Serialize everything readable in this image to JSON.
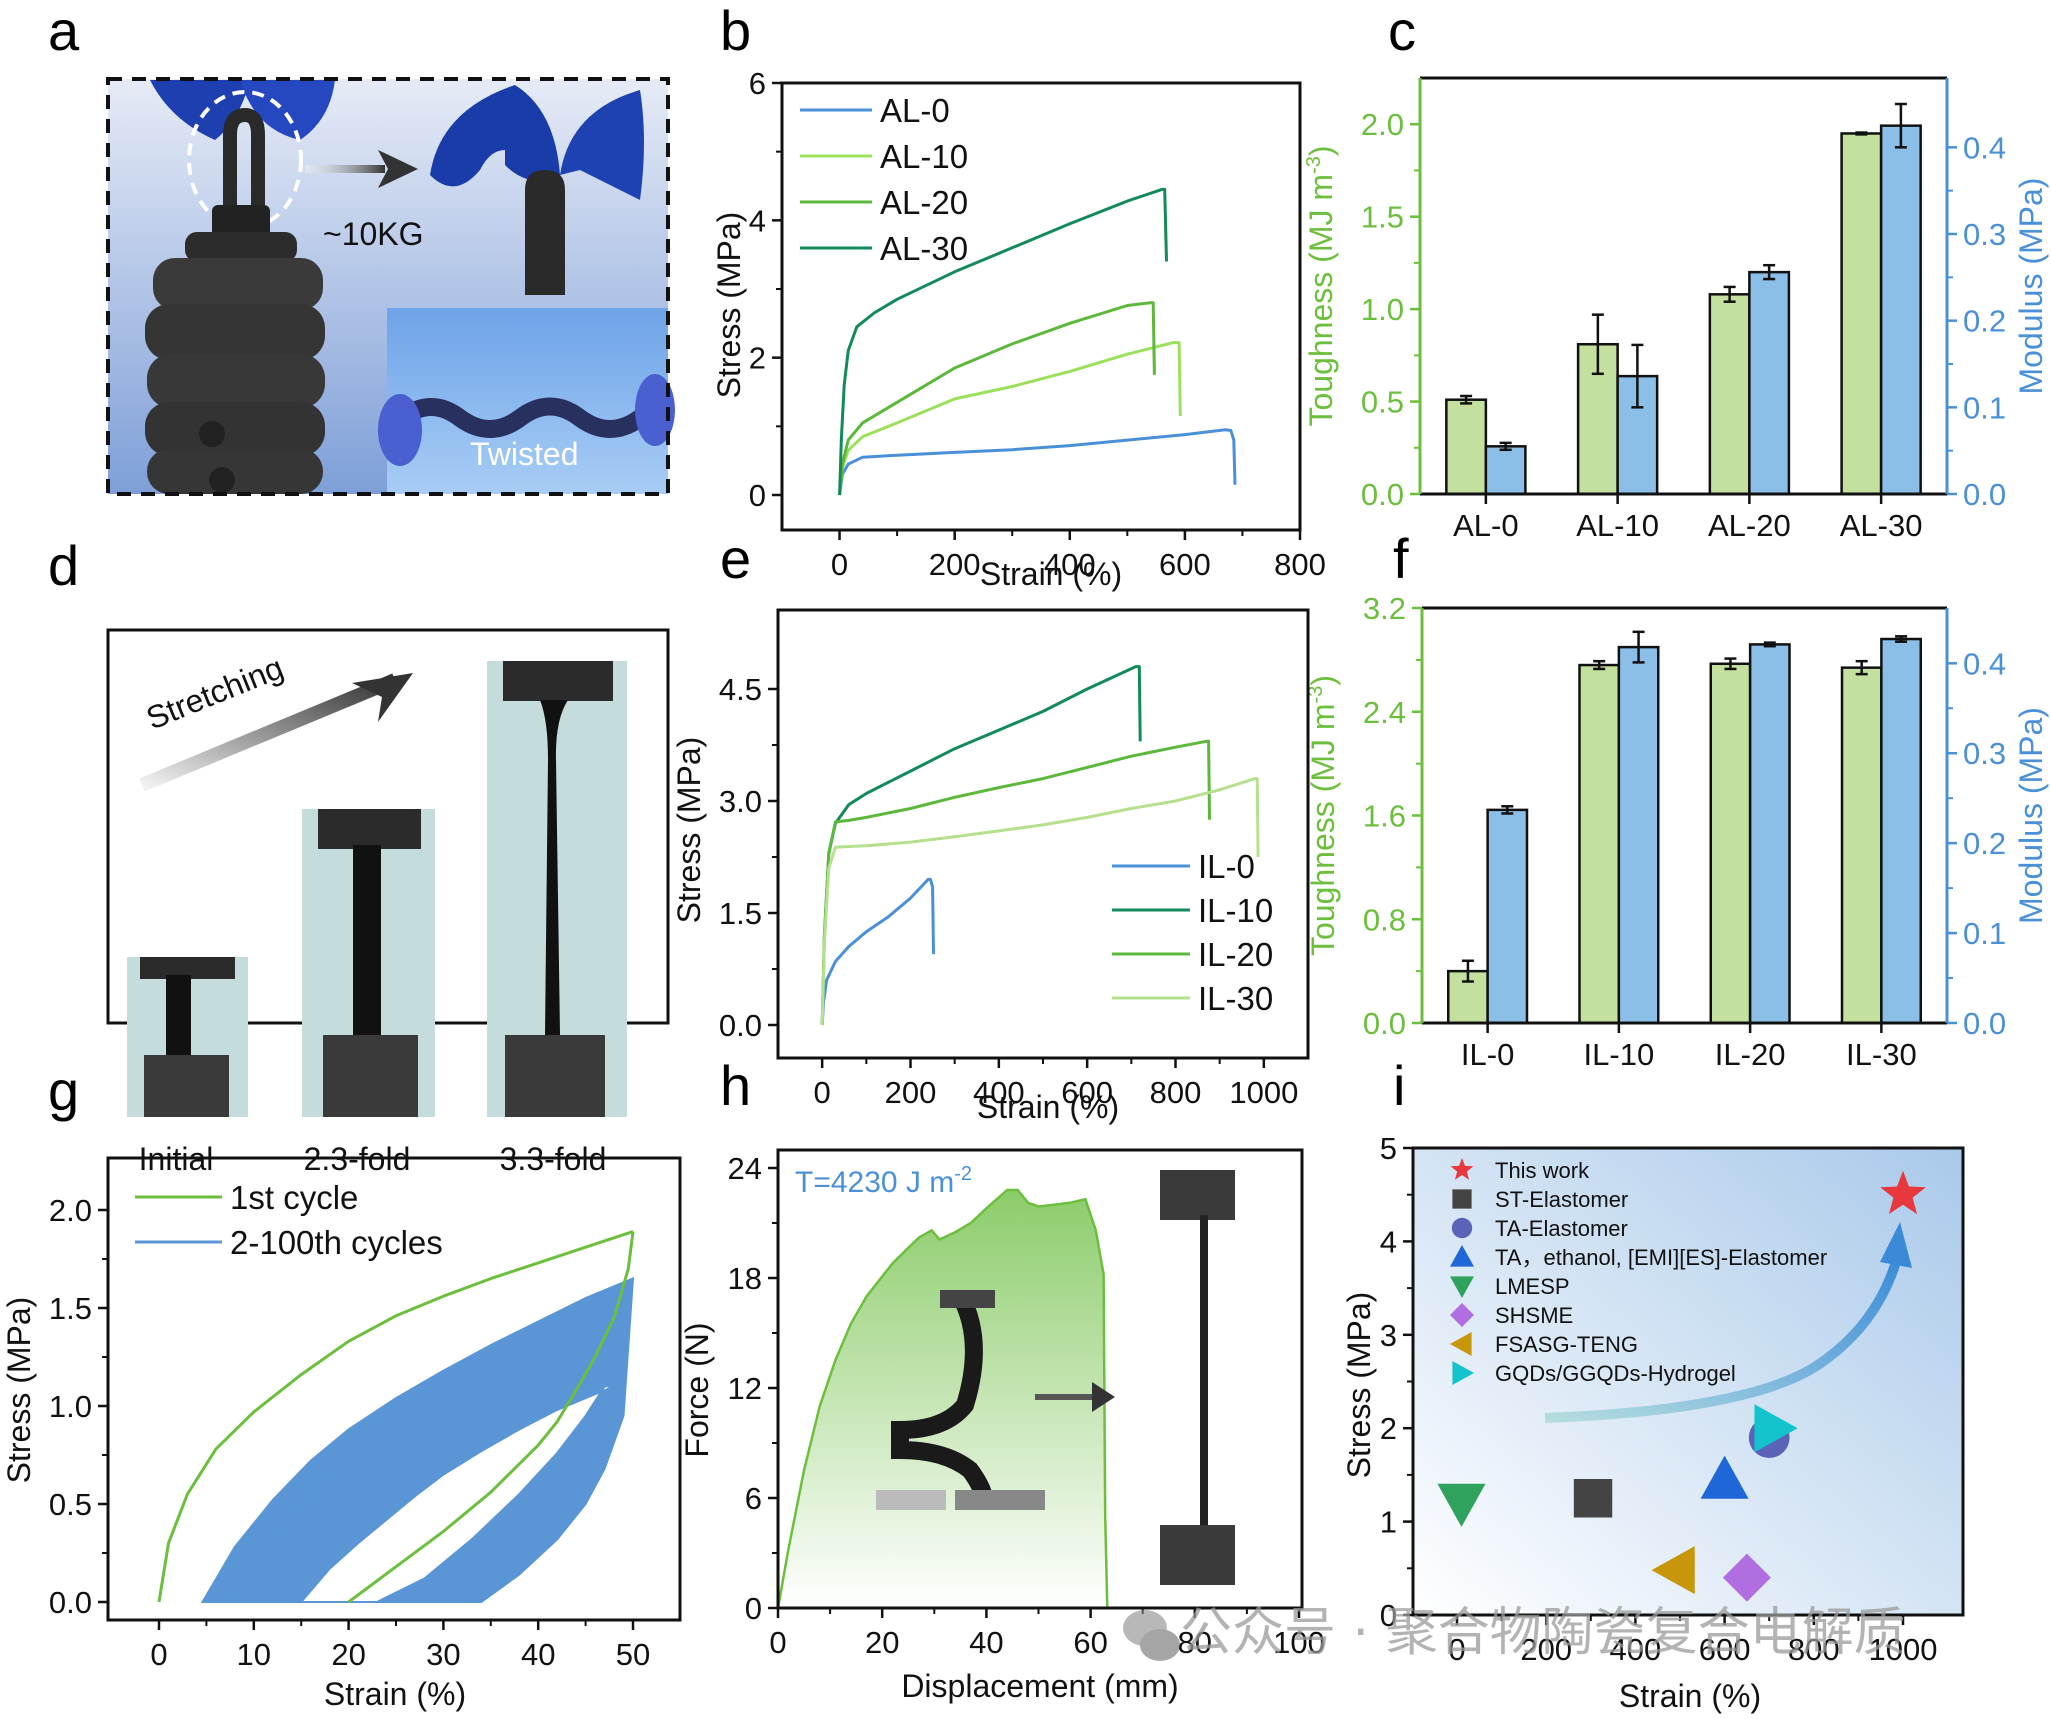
{
  "panels": {
    "a": {
      "letter": "a",
      "type": "photo",
      "load_label": "~10KG",
      "twist_label": "Twisted"
    },
    "d": {
      "letter": "d",
      "type": "photo",
      "arrow_label": "Stretching",
      "stages": [
        "Initial",
        "2.3-fold",
        "3.3-fold"
      ]
    },
    "h_text": {
      "letter": "h",
      "annotation": "T=4230 J m",
      "annotation_sup": "-2"
    },
    "letters": {
      "b": "b",
      "c": "c",
      "e": "e",
      "f": "f",
      "g": "g",
      "i": "i"
    }
  },
  "watermark": "公众号 · 聚合物陶瓷复合电解质",
  "colors": {
    "AL-0": "#4a90d9",
    "AL-10": "#9be05a",
    "AL-20": "#5bb83a",
    "AL-30": "#128a5a",
    "IL-0": "#4a90d9",
    "IL-10": "#128a5a",
    "IL-20": "#5bb83a",
    "IL-30": "#b5e08e",
    "toughness_bar": "#c3e09e",
    "modulus_bar": "#8bbfe8",
    "toughness_axis": "#6cbf3c",
    "modulus_axis": "#4a90d9",
    "cycle1": "#6cbf3c",
    "cycles": "#5a96d6",
    "fracture_fill": "#8ccc6a"
  },
  "chart_data": [
    {
      "id": "b",
      "type": "line",
      "title": "",
      "xlabel": "Strain (%)",
      "ylabel": "Stress (MPa)",
      "xlim": [
        -100,
        800
      ],
      "ylim": [
        -0.5,
        6
      ],
      "xticks": [
        0,
        200,
        400,
        600,
        800
      ],
      "yticks": [
        0,
        2,
        4,
        6
      ],
      "legend": "top-left",
      "series": [
        {
          "name": "AL-0",
          "x": [
            0,
            5,
            15,
            40,
            100,
            200,
            300,
            400,
            500,
            600,
            670,
            680,
            685,
            687
          ],
          "y": [
            0,
            0.3,
            0.45,
            0.55,
            0.58,
            0.62,
            0.66,
            0.72,
            0.8,
            0.88,
            0.95,
            0.94,
            0.8,
            0.15
          ]
        },
        {
          "name": "AL-10",
          "x": [
            0,
            5,
            15,
            40,
            100,
            200,
            300,
            400,
            500,
            580,
            590,
            592
          ],
          "y": [
            0,
            0.4,
            0.65,
            0.85,
            1.05,
            1.4,
            1.58,
            1.8,
            2.05,
            2.22,
            2.22,
            1.15
          ]
        },
        {
          "name": "AL-20",
          "x": [
            0,
            5,
            15,
            40,
            100,
            200,
            300,
            400,
            500,
            540,
            545,
            547
          ],
          "y": [
            0,
            0.45,
            0.8,
            1.05,
            1.35,
            1.85,
            2.2,
            2.5,
            2.76,
            2.8,
            2.8,
            1.75
          ]
        },
        {
          "name": "AL-30",
          "x": [
            0,
            3,
            8,
            15,
            30,
            60,
            100,
            200,
            300,
            400,
            500,
            560,
            565,
            568
          ],
          "y": [
            0,
            0.8,
            1.6,
            2.1,
            2.45,
            2.65,
            2.85,
            3.25,
            3.6,
            3.95,
            4.28,
            4.45,
            4.45,
            3.4
          ]
        }
      ]
    },
    {
      "id": "c",
      "type": "bar",
      "categories": [
        "AL-0",
        "AL-10",
        "AL-20",
        "AL-30"
      ],
      "ylabel_left": "Toughness (MJ m",
      "ylabel_left_sup": "-3",
      "ylabel_left_close": ")",
      "ylabel_right": "Modulus (MPa)",
      "ylim_left": [
        0,
        2.25
      ],
      "ylim_right": [
        0,
        0.48
      ],
      "yticks_left": [
        "0.0",
        "0.5",
        "1.0",
        "1.5",
        "2.0"
      ],
      "yticks_right": [
        "0.0",
        "0.1",
        "0.2",
        "0.3",
        "0.4"
      ],
      "series": [
        {
          "name": "Toughness",
          "axis": "left",
          "values": [
            0.51,
            0.81,
            1.08,
            1.95
          ],
          "errors": [
            0.02,
            0.16,
            0.04,
            0.005
          ]
        },
        {
          "name": "Modulus",
          "axis": "right",
          "values": [
            0.055,
            0.136,
            0.256,
            0.425
          ],
          "errors": [
            0.004,
            0.036,
            0.008,
            0.025
          ]
        }
      ]
    },
    {
      "id": "e",
      "type": "line",
      "xlabel": "Strain (%)",
      "ylabel": "Stress (MPa)",
      "xlim": [
        -100,
        1100
      ],
      "ylim": [
        -0.5,
        5.5
      ],
      "xticks": [
        0,
        200,
        400,
        600,
        800,
        1000
      ],
      "yticks": [
        "0.0",
        "1.5",
        "3.0",
        "4.5"
      ],
      "legend": "bottom-right",
      "series": [
        {
          "name": "IL-0",
          "x": [
            0,
            3,
            10,
            30,
            60,
            100,
            150,
            200,
            240,
            245,
            250,
            252
          ],
          "y": [
            0,
            0.3,
            0.6,
            0.85,
            1.05,
            1.25,
            1.45,
            1.7,
            1.95,
            1.95,
            1.85,
            0.95
          ]
        },
        {
          "name": "IL-10",
          "x": [
            0,
            5,
            15,
            30,
            60,
            100,
            200,
            300,
            400,
            500,
            600,
            710,
            718,
            720
          ],
          "y": [
            0,
            1.2,
            2.3,
            2.7,
            2.95,
            3.1,
            3.4,
            3.7,
            3.95,
            4.2,
            4.5,
            4.8,
            4.8,
            3.8
          ]
        },
        {
          "name": "IL-20",
          "x": [
            0,
            5,
            15,
            30,
            60,
            100,
            200,
            300,
            400,
            500,
            600,
            700,
            800,
            870,
            875,
            877
          ],
          "y": [
            0,
            1.2,
            2.3,
            2.72,
            2.74,
            2.78,
            2.9,
            3.05,
            3.18,
            3.3,
            3.45,
            3.6,
            3.72,
            3.8,
            3.8,
            2.75
          ]
        },
        {
          "name": "IL-30",
          "x": [
            0,
            5,
            15,
            30,
            60,
            100,
            200,
            300,
            400,
            500,
            600,
            700,
            800,
            900,
            980,
            985,
            987
          ],
          "y": [
            0,
            1.1,
            2.1,
            2.38,
            2.39,
            2.4,
            2.45,
            2.52,
            2.6,
            2.68,
            2.78,
            2.9,
            3.0,
            3.15,
            3.3,
            3.3,
            2.25
          ]
        }
      ]
    },
    {
      "id": "f",
      "type": "bar",
      "categories": [
        "IL-0",
        "IL-10",
        "IL-20",
        "IL-30"
      ],
      "ylabel_left": "Toughness (MJ m",
      "ylabel_left_sup": "-3",
      "ylabel_left_close": ")",
      "ylabel_right": "Modulus (MPa)",
      "ylim_left": [
        0,
        3.2
      ],
      "ylim_right": [
        0,
        0.4615
      ],
      "yticks_left": [
        "0.0",
        "0.8",
        "1.6",
        "2.4",
        "3.2"
      ],
      "yticks_right": [
        "0.0",
        "0.1",
        "0.2",
        "0.3",
        "0.4"
      ],
      "series": [
        {
          "name": "Toughness",
          "axis": "left",
          "values": [
            0.4,
            2.76,
            2.77,
            2.74
          ],
          "errors": [
            0.08,
            0.03,
            0.04,
            0.05
          ]
        },
        {
          "name": "Modulus",
          "axis": "right",
          "values": [
            0.237,
            0.418,
            0.421,
            0.427
          ],
          "errors": [
            0.004,
            0.017,
            0.002,
            0.003
          ]
        }
      ]
    },
    {
      "id": "g",
      "type": "line",
      "xlabel": "Strain (%)",
      "ylabel": "Stress (MPa)",
      "xlim": [
        -5,
        55
      ],
      "ylim": [
        0,
        2.25
      ],
      "xticks": [
        0,
        10,
        20,
        30,
        40,
        50
      ],
      "yticks": [
        "0.0",
        "0.5",
        "1.0",
        "1.5",
        "2.0"
      ],
      "legend": "top-left",
      "series": [
        {
          "name": "1st cycle",
          "loading": {
            "x": [
              0,
              1,
              3,
              6,
              10,
              15,
              20,
              25,
              30,
              35,
              40,
              45,
              50
            ],
            "y": [
              0,
              0.3,
              0.55,
              0.78,
              0.97,
              1.16,
              1.33,
              1.46,
              1.56,
              1.65,
              1.73,
              1.81,
              1.89
            ]
          },
          "unloading": {
            "x": [
              50,
              49.5,
              48,
              46,
              44,
              42,
              40,
              35,
              30,
              25,
              20
            ],
            "y": [
              1.89,
              1.7,
              1.45,
              1.25,
              1.08,
              0.92,
              0.8,
              0.56,
              0.36,
              0.18,
              0
            ]
          }
        },
        {
          "name": "2-100th cycles",
          "band_outer": {
            "loading": {
              "x": [
                4.6,
                8,
                12,
                16,
                20,
                25,
                30,
                35,
                40,
                45,
                50
              ],
              "y": [
                0,
                0.28,
                0.52,
                0.72,
                0.88,
                1.04,
                1.18,
                1.31,
                1.43,
                1.55,
                1.65
              ]
            },
            "unloading": {
              "x": [
                50,
                49,
                47,
                45,
                42,
                38,
                34
              ],
              "y": [
                1.65,
                0.95,
                0.68,
                0.5,
                0.32,
                0.14,
                0
              ]
            }
          },
          "band_inner": {
            "loading": {
              "x": [
                15,
                18,
                21,
                24,
                27,
                30,
                34,
                38,
                42,
                46,
                48
              ],
              "y": [
                0,
                0.17,
                0.3,
                0.42,
                0.54,
                0.65,
                0.77,
                0.88,
                0.98,
                1.06,
                1.1
              ]
            },
            "unloading": {
              "x": [
                47,
                45,
                42,
                38,
                33,
                28,
                23
              ],
              "y": [
                1.1,
                0.95,
                0.76,
                0.55,
                0.32,
                0.12,
                0
              ]
            }
          }
        }
      ]
    },
    {
      "id": "h",
      "type": "area",
      "xlabel": "Displacement (mm)",
      "ylabel": "Force (N)",
      "xlim": [
        0,
        100
      ],
      "ylim": [
        0,
        24.5
      ],
      "xticks": [
        0,
        20,
        40,
        60,
        80,
        100
      ],
      "yticks": [
        0,
        6,
        12,
        18,
        24
      ],
      "x": [
        0,
        2,
        5,
        8,
        11,
        14,
        17,
        19.5,
        22,
        24.5,
        27,
        29.5,
        31,
        34,
        37,
        40,
        42,
        44,
        46,
        48,
        50,
        53,
        56,
        59,
        61,
        62.5,
        62.8,
        63.2
      ],
      "y": [
        0,
        3.2,
        7.5,
        11,
        13.5,
        15.5,
        17,
        17.9,
        18.8,
        19.5,
        20.2,
        20.6,
        20.1,
        20.5,
        21.0,
        21.8,
        22.3,
        22.8,
        22.8,
        22.1,
        21.9,
        22.0,
        22.1,
        22.3,
        20.6,
        18.2,
        5,
        0
      ],
      "annotation": "T=4230 J m-2"
    },
    {
      "id": "i",
      "type": "scatter",
      "xlabel": "Strain (%)",
      "ylabel": "Stress (MPa)",
      "xlim": [
        -100,
        1100
      ],
      "ylim": [
        0,
        5
      ],
      "xticks": [
        0,
        200,
        400,
        600,
        800,
        1000
      ],
      "yticks": [
        0,
        1,
        2,
        3,
        4,
        5
      ],
      "legend": "top-left",
      "points": [
        {
          "name": "This work",
          "x": 1000,
          "y": 4.5,
          "marker": "star",
          "color": "#e8383d"
        },
        {
          "name": "ST-Elastomer",
          "x": 305,
          "y": 1.25,
          "marker": "square",
          "color": "#444444"
        },
        {
          "name": "TA-Elastomer",
          "x": 700,
          "y": 1.9,
          "marker": "circle",
          "color": "#5a63b8"
        },
        {
          "name": "TA，ethanol, [EMI][ES]-Elastomer",
          "x": 600,
          "y": 1.45,
          "marker": "triangle-up",
          "color": "#1f66d8"
        },
        {
          "name": "LMESP",
          "x": 10,
          "y": 1.2,
          "marker": "triangle-down",
          "color": "#2fa35e"
        },
        {
          "name": "SHSME",
          "x": 650,
          "y": 0.4,
          "marker": "diamond",
          "color": "#b06ee0"
        },
        {
          "name": "FSASG-TENG",
          "x": 490,
          "y": 0.48,
          "marker": "triangle-left",
          "color": "#c8960a"
        },
        {
          "name": "GQDs/GGQDs-Hydrogel",
          "x": 710,
          "y": 2.0,
          "marker": "triangle-right",
          "color": "#14c4cc"
        }
      ]
    }
  ]
}
